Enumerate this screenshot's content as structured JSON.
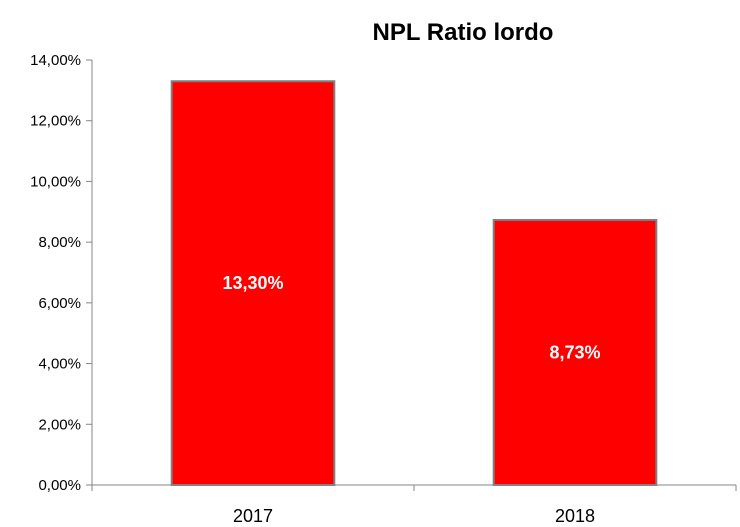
{
  "chart_data": {
    "type": "bar",
    "title": "NPL Ratio lordo",
    "xlabel": "",
    "ylabel": "",
    "categories": [
      "2017",
      "2018"
    ],
    "values": [
      13.3,
      8.73
    ],
    "data_labels": [
      "13,30%",
      "8,73%"
    ],
    "ylim": [
      0,
      14
    ],
    "yticks": [
      0,
      2,
      4,
      6,
      8,
      10,
      12,
      14
    ],
    "ytick_labels": [
      "0,00%",
      "2,00%",
      "4,00%",
      "6,00%",
      "8,00%",
      "10,00%",
      "12,00%",
      "14,00%"
    ],
    "grid": false,
    "legend": "none",
    "bar_color": "#ff0000",
    "bar_edge_color": "#7f7f7f"
  }
}
